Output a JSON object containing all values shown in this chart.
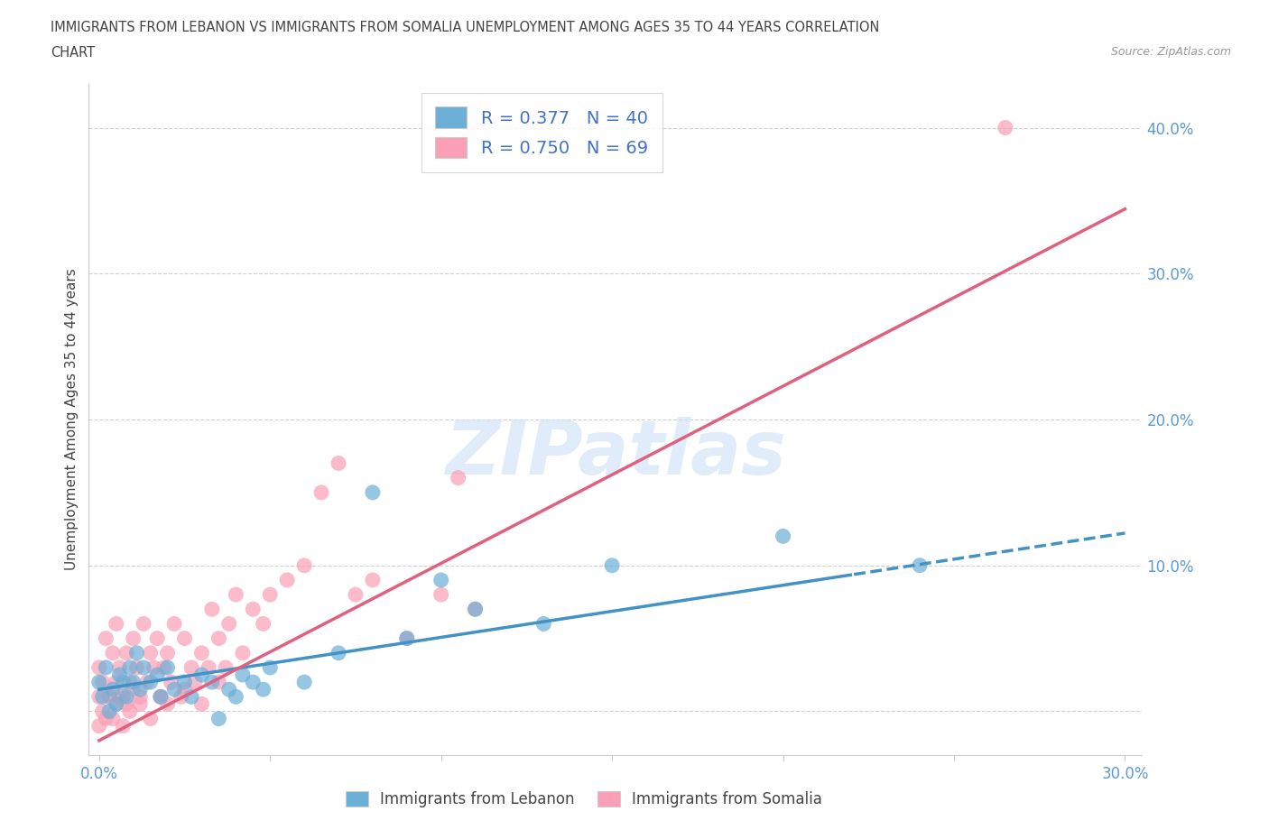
{
  "title_line1": "IMMIGRANTS FROM LEBANON VS IMMIGRANTS FROM SOMALIA UNEMPLOYMENT AMONG AGES 35 TO 44 YEARS CORRELATION",
  "title_line2": "CHART",
  "source": "Source: ZipAtlas.com",
  "ylabel": "Unemployment Among Ages 35 to 44 years",
  "xlim": [
    -0.003,
    0.305
  ],
  "ylim": [
    -0.03,
    0.43
  ],
  "x_ticks": [
    0.0,
    0.05,
    0.1,
    0.15,
    0.2,
    0.25,
    0.3
  ],
  "x_tick_labels": [
    "0.0%",
    "",
    "",
    "",
    "",
    "",
    "30.0%"
  ],
  "y_ticks": [
    0.0,
    0.1,
    0.2,
    0.3,
    0.4
  ],
  "y_tick_labels": [
    "",
    "10.0%",
    "20.0%",
    "30.0%",
    "40.0%"
  ],
  "legend_blue_label": "R = 0.377   N = 40",
  "legend_pink_label": "R = 0.750   N = 69",
  "legend_bottom_blue": "Immigrants from Lebanon",
  "legend_bottom_pink": "Immigrants from Somalia",
  "blue_color": "#6baed6",
  "pink_color": "#fa9fb5",
  "blue_line_color": "#4292c6",
  "pink_line_color": "#e06080",
  "watermark_color": "#ddeeff",
  "blue_scatter_x": [
    0.0,
    0.001,
    0.002,
    0.003,
    0.004,
    0.005,
    0.006,
    0.007,
    0.008,
    0.009,
    0.01,
    0.011,
    0.012,
    0.013,
    0.015,
    0.017,
    0.018,
    0.02,
    0.022,
    0.025,
    0.027,
    0.03,
    0.033,
    0.035,
    0.038,
    0.04,
    0.042,
    0.045,
    0.048,
    0.05,
    0.06,
    0.07,
    0.08,
    0.09,
    0.1,
    0.11,
    0.13,
    0.15,
    0.2,
    0.24
  ],
  "blue_scatter_y": [
    0.02,
    0.01,
    0.03,
    0.0,
    0.015,
    0.005,
    0.025,
    0.02,
    0.01,
    0.03,
    0.02,
    0.04,
    0.015,
    0.03,
    0.02,
    0.025,
    0.01,
    0.03,
    0.015,
    0.02,
    0.01,
    0.025,
    0.02,
    -0.005,
    0.015,
    0.01,
    0.025,
    0.02,
    0.015,
    0.03,
    0.02,
    0.04,
    0.15,
    0.05,
    0.09,
    0.07,
    0.06,
    0.1,
    0.12,
    0.1
  ],
  "pink_scatter_x": [
    0.0,
    0.0,
    0.001,
    0.002,
    0.003,
    0.004,
    0.005,
    0.005,
    0.006,
    0.007,
    0.008,
    0.009,
    0.01,
    0.011,
    0.012,
    0.013,
    0.014,
    0.015,
    0.016,
    0.017,
    0.018,
    0.019,
    0.02,
    0.021,
    0.022,
    0.024,
    0.025,
    0.027,
    0.028,
    0.03,
    0.032,
    0.033,
    0.035,
    0.037,
    0.038,
    0.04,
    0.042,
    0.045,
    0.048,
    0.05,
    0.055,
    0.06,
    0.065,
    0.07,
    0.075,
    0.08,
    0.09,
    0.1,
    0.105,
    0.11,
    0.0,
    0.001,
    0.002,
    0.003,
    0.004,
    0.005,
    0.006,
    0.007,
    0.008,
    0.009,
    0.01,
    0.012,
    0.015,
    0.018,
    0.02,
    0.025,
    0.03,
    0.035,
    0.265
  ],
  "pink_scatter_y": [
    0.01,
    0.03,
    0.02,
    0.05,
    0.01,
    0.04,
    0.02,
    0.06,
    0.03,
    0.01,
    0.04,
    0.02,
    0.05,
    0.03,
    0.01,
    0.06,
    0.02,
    0.04,
    0.03,
    0.05,
    0.01,
    0.03,
    0.04,
    0.02,
    0.06,
    0.01,
    0.05,
    0.03,
    0.02,
    0.04,
    0.03,
    0.07,
    0.05,
    0.03,
    0.06,
    0.08,
    0.04,
    0.07,
    0.06,
    0.08,
    0.09,
    0.1,
    0.15,
    0.17,
    0.08,
    0.09,
    0.05,
    0.08,
    0.16,
    0.07,
    -0.01,
    0.0,
    -0.005,
    0.01,
    -0.005,
    0.005,
    0.01,
    -0.01,
    0.005,
    0.0,
    0.015,
    0.005,
    -0.005,
    0.01,
    0.005,
    0.015,
    0.005,
    0.02,
    0.4
  ],
  "blue_line_x0": 0.0,
  "blue_line_y0": 0.015,
  "blue_line_x1": 0.28,
  "blue_line_y1": 0.115,
  "pink_line_x0": 0.0,
  "pink_line_y0": -0.02,
  "pink_line_x1": 0.28,
  "pink_line_y1": 0.32
}
